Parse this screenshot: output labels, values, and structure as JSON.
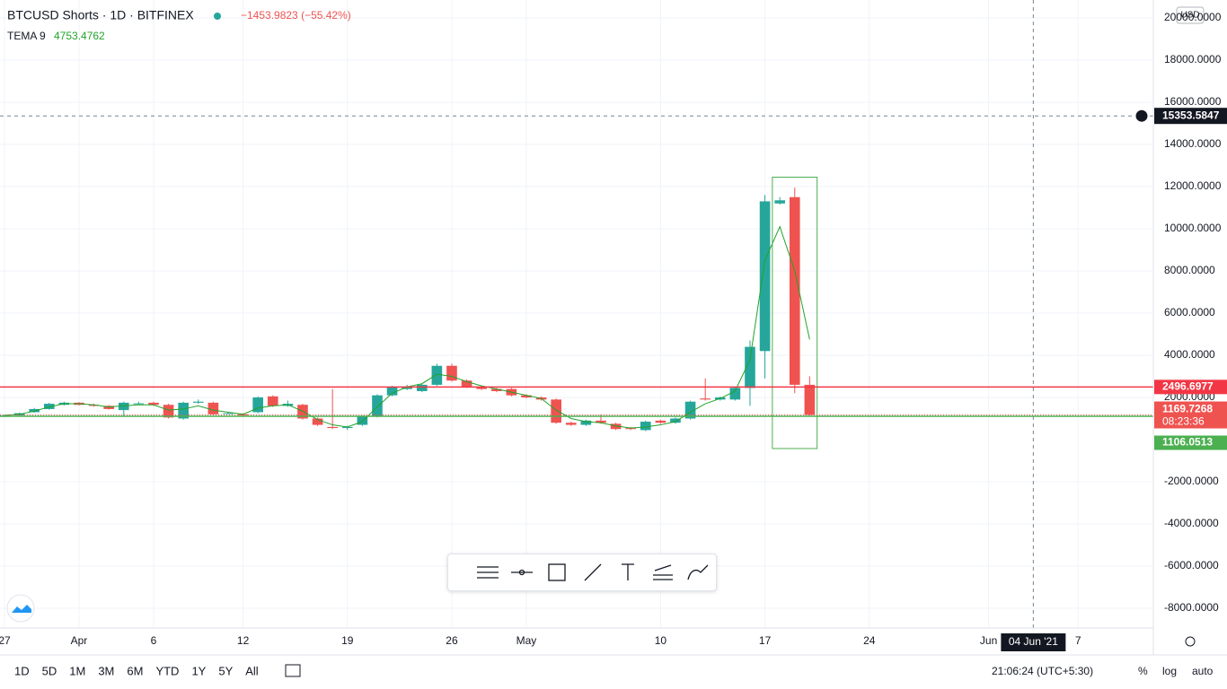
{
  "header": {
    "symbol": "BTCUSD Shorts · 1D · BITFINEX",
    "change": "−1453.9823 (−55.42%)",
    "indicator": "TEMA 9",
    "indicator_value": "4753.4762"
  },
  "chart_data": {
    "type": "candlestick",
    "currency": "USD",
    "x": [
      0,
      1,
      2,
      3,
      4,
      5,
      6,
      7,
      8,
      9,
      10,
      11,
      12,
      13,
      14,
      15,
      16,
      17,
      18,
      19,
      20,
      21,
      22,
      23,
      24,
      25,
      26,
      27,
      28,
      29,
      30,
      31,
      32,
      33,
      34,
      35,
      36,
      37,
      38,
      39,
      40,
      41,
      42,
      43,
      44,
      45,
      46,
      47,
      48,
      49,
      50,
      51,
      52,
      53,
      54
    ],
    "open": [
      1100,
      1150,
      1300,
      1450,
      1650,
      1750,
      1650,
      1600,
      1400,
      1700,
      1750,
      1650,
      1000,
      1750,
      1750,
      1250,
      1200,
      1300,
      2050,
      1600,
      1650,
      1000,
      600,
      550,
      700,
      1100,
      2100,
      2400,
      2300,
      2600,
      3500,
      2800,
      2500,
      2400,
      2400,
      2100,
      2000,
      1900,
      800,
      700,
      900,
      750,
      550,
      450,
      900,
      800,
      1000,
      1950,
      1900,
      1900,
      2450,
      4200,
      11200,
      11500,
      2600
    ],
    "high": [
      1180,
      1280,
      1500,
      1750,
      1800,
      1780,
      1700,
      1640,
      1800,
      1800,
      1800,
      1700,
      1800,
      1900,
      1800,
      1300,
      1250,
      2050,
      2100,
      1850,
      1700,
      1050,
      2400,
      650,
      1150,
      2150,
      2550,
      2600,
      2650,
      3600,
      3600,
      2850,
      2550,
      2450,
      2450,
      2150,
      2050,
      1950,
      850,
      950,
      1200,
      800,
      600,
      900,
      950,
      1050,
      1850,
      2900,
      2050,
      2500,
      4700,
      11600,
      11500,
      11950,
      3000
    ],
    "low": [
      1080,
      1130,
      1280,
      1420,
      1620,
      1620,
      1560,
      1420,
      1100,
      1650,
      1600,
      1000,
      950,
      1700,
      1150,
      1200,
      1100,
      1250,
      1550,
      1550,
      950,
      650,
      500,
      450,
      650,
      1050,
      2050,
      2350,
      2250,
      2550,
      2750,
      2450,
      2350,
      2250,
      2050,
      1950,
      1850,
      750,
      650,
      650,
      750,
      450,
      450,
      400,
      750,
      750,
      950,
      1850,
      1850,
      1850,
      1600,
      2900,
      11150,
      2200,
      1150
    ],
    "close": [
      1150,
      1250,
      1450,
      1700,
      1750,
      1650,
      1600,
      1450,
      1750,
      1720,
      1650,
      1050,
      1750,
      1800,
      1200,
      1250,
      1150,
      2000,
      1600,
      1700,
      1000,
      700,
      550,
      600,
      1100,
      2100,
      2500,
      2500,
      2600,
      3500,
      2800,
      2500,
      2400,
      2300,
      2100,
      2000,
      1900,
      800,
      700,
      900,
      800,
      500,
      500,
      850,
      800,
      1000,
      1800,
      1900,
      2000,
      2450,
      4400,
      11300,
      11350,
      2600,
      1170
    ],
    "tema": [
      1150,
      1200,
      1350,
      1550,
      1700,
      1700,
      1650,
      1550,
      1600,
      1650,
      1650,
      1400,
      1450,
      1600,
      1400,
      1300,
      1200,
      1500,
      1600,
      1650,
      1350,
      950,
      700,
      600,
      850,
      1550,
      2200,
      2500,
      2650,
      3100,
      3000,
      2750,
      2550,
      2400,
      2250,
      2100,
      1950,
      1400,
      1000,
      850,
      800,
      650,
      550,
      600,
      700,
      850,
      1300,
      1700,
      1950,
      2300,
      3800,
      8500,
      10100,
      8000,
      4750
    ],
    "up_color": "#26a69a",
    "down_color": "#ef5350",
    "tema_color": "#21a32a",
    "xlim": [
      -0.3,
      77.05
    ],
    "xticks": [
      {
        "value": 0,
        "label": "27"
      },
      {
        "value": 5,
        "label": "Apr"
      },
      {
        "value": 10,
        "label": "6"
      },
      {
        "value": 16,
        "label": "12"
      },
      {
        "value": 23,
        "label": "19"
      },
      {
        "value": 30,
        "label": "26"
      },
      {
        "value": 35,
        "label": "May"
      },
      {
        "value": 44,
        "label": "10"
      },
      {
        "value": 51,
        "label": "17"
      },
      {
        "value": 58,
        "label": "24"
      },
      {
        "value": 66,
        "label": "Jun"
      },
      {
        "value": 72,
        "label": "7"
      }
    ],
    "ylim": [
      -8936,
      20851
    ],
    "yticks": [
      {
        "value": -8000,
        "label": "-8000.0000"
      },
      {
        "value": -6000,
        "label": "-6000.0000"
      },
      {
        "value": -4000,
        "label": "-4000.0000"
      },
      {
        "value": -2000,
        "label": "-2000.0000"
      },
      {
        "value": 2000,
        "label": "2000.0000"
      },
      {
        "value": 4000,
        "label": "4000.0000"
      },
      {
        "value": 6000,
        "label": "6000.0000"
      },
      {
        "value": 8000,
        "label": "8000.0000"
      },
      {
        "value": 10000,
        "label": "10000.0000"
      },
      {
        "value": 12000,
        "label": "12000.0000"
      },
      {
        "value": 14000,
        "label": "14000.0000"
      },
      {
        "value": 16000,
        "label": "16000.0000"
      },
      {
        "value": 18000,
        "label": "18000.0000"
      },
      {
        "value": 20000,
        "label": "20000.0000"
      }
    ],
    "grid": true,
    "lines": [
      {
        "value": 2496.6977,
        "label": "2496.6977",
        "color": "#f23645"
      },
      {
        "value": 1106.0513,
        "label": "1106.0513",
        "color": "#4caf50"
      }
    ],
    "last_price": {
      "value": 1169.7268,
      "label": "1169.7268",
      "countdown": "08:23:36",
      "color": "#ef5350"
    },
    "crosshair": {
      "value": 15353.5847,
      "label": "15353.5847",
      "x": 69,
      "x_label": "04 Jun '21"
    },
    "box": {
      "x": [
        51.5,
        54.5
      ],
      "y": [
        -424,
        12447
      ],
      "color": "#4caf50"
    }
  },
  "toolbar": {
    "ranges": [
      "1D",
      "5D",
      "1M",
      "3M",
      "6M",
      "YTD",
      "1Y",
      "5Y",
      "All"
    ],
    "time": "21:06:24 (UTC+5:30)",
    "percent": "%",
    "log": "log",
    "auto": "auto"
  }
}
